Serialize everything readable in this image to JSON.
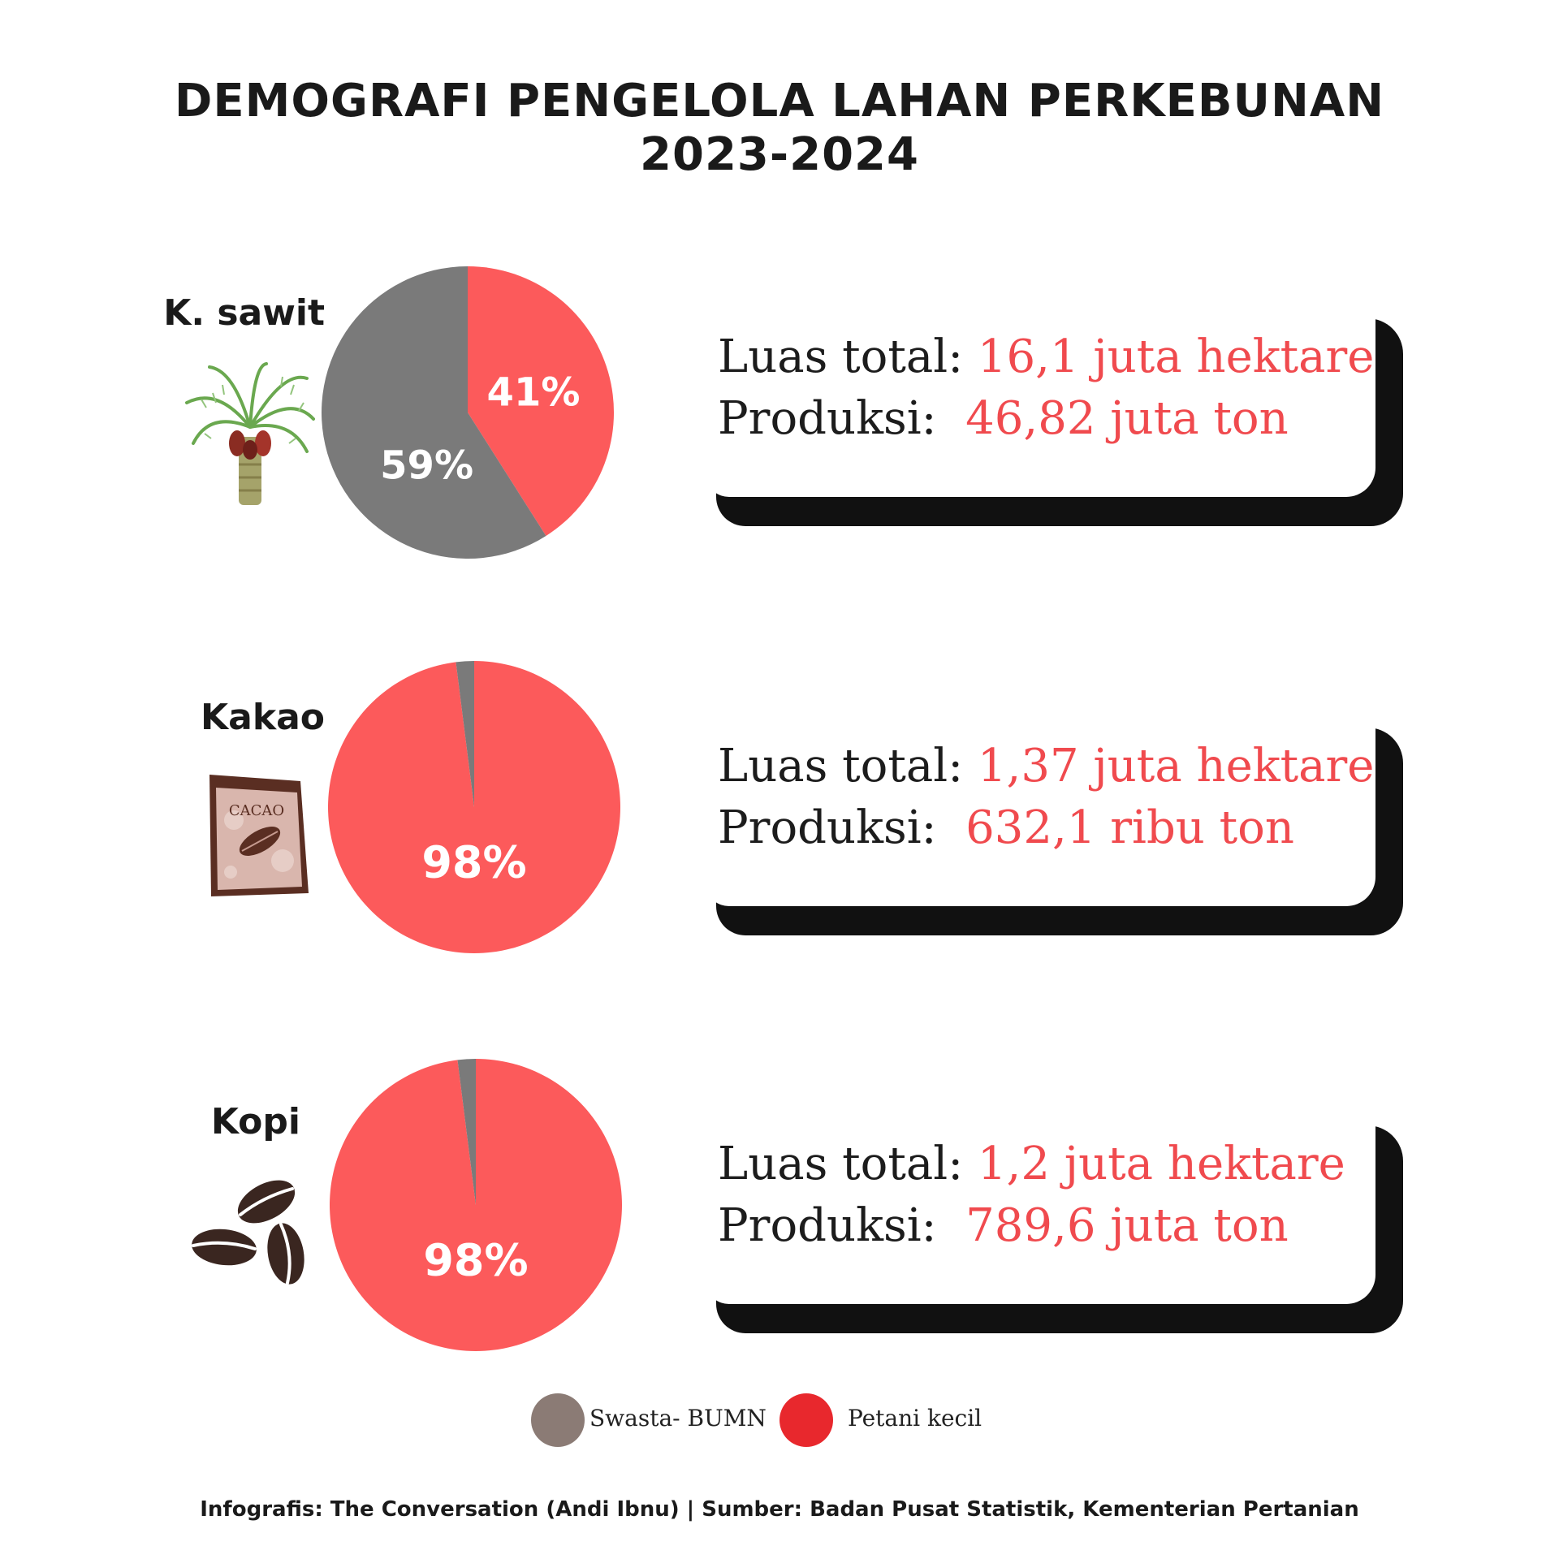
{
  "title": {
    "line1": "DEMOGRAFI PENGELOLA LAHAN PERKEBUNAN",
    "line2": "2023-2024"
  },
  "colors": {
    "petani": "#fc5a5b",
    "swasta": "#7a7a7a",
    "legend_swasta": "#8b7b75",
    "legend_petani": "#e8282d",
    "value_text": "#f04a4e"
  },
  "chart_data": [
    {
      "type": "pie",
      "title": "K. sawit",
      "labels": [
        "Petani kecil",
        "Swasta- BUMN"
      ],
      "values": [
        41,
        59
      ],
      "value_labels": [
        "41%",
        "59%"
      ],
      "luas_label": "Luas total:",
      "luas_value": "16,1 juta hektare",
      "produksi_label": "Produksi:",
      "produksi_value": "46,82 juta ton",
      "icon": "palm-tree-icon"
    },
    {
      "type": "pie",
      "title": "Kakao",
      "labels": [
        "Petani kecil",
        "Swasta- BUMN"
      ],
      "values": [
        98,
        2
      ],
      "value_labels": [
        "98%",
        ""
      ],
      "luas_label": "Luas total:",
      "luas_value": "1,37 juta hektare",
      "produksi_label": "Produksi:",
      "produksi_value": "632,1 ribu ton",
      "icon": "cacao-bag-icon",
      "icon_text": "CACAO"
    },
    {
      "type": "pie",
      "title": "Kopi",
      "labels": [
        "Petani kecil",
        "Swasta- BUMN"
      ],
      "values": [
        98,
        2
      ],
      "value_labels": [
        "98%",
        ""
      ],
      "luas_label": "Luas total:",
      "luas_value": "1,2 juta hektare",
      "produksi_label": "Produksi:",
      "produksi_value": "789,6 juta ton",
      "icon": "coffee-beans-icon"
    }
  ],
  "legend": [
    {
      "label": "Swasta- BUMN",
      "color": "#8b7b75"
    },
    {
      "label": "Petani kecil",
      "color": "#e8282d"
    }
  ],
  "footer": "Infografis: The Conversation (Andi Ibnu) | Sumber: Badan Pusat Statistik, Kementerian Pertanian"
}
